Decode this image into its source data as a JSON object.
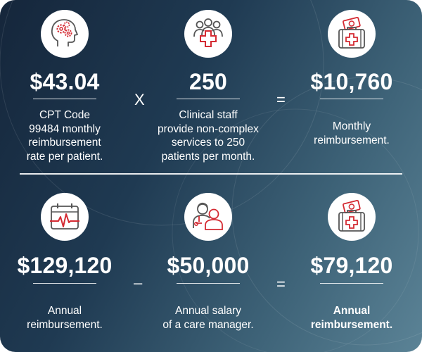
{
  "row1": {
    "values": [
      "$43.04",
      "250",
      "$10,760"
    ],
    "descriptions": [
      [
        "CPT Code",
        "99484 monthly",
        "reimbursement",
        "rate per patient."
      ],
      [
        "Clinical staff",
        "provide non-complex",
        "services to 250",
        "patients per month."
      ],
      [
        "Monthly",
        "reimbursement."
      ]
    ],
    "operators": [
      "X",
      "="
    ]
  },
  "row2": {
    "values": [
      "$129,120",
      "$50,000",
      "$79,120"
    ],
    "descriptions": [
      [
        "Annual",
        "reimbursement."
      ],
      [
        "Annual salary",
        "of a care manager."
      ],
      [
        "Annual",
        "reimbursement."
      ]
    ],
    "operators": [
      "–",
      "="
    ]
  },
  "icons": [
    "head-gears-icon",
    "group-medical-icon",
    "medical-kit-money-icon",
    "calendar-heartbeat-icon",
    "doctor-patient-icon",
    "medical-kit-money-icon"
  ],
  "colors": {
    "background_dark": "#15263b",
    "background_light": "#5b8396",
    "accent_red": "#d42a32",
    "icon_gray": "#555555"
  }
}
